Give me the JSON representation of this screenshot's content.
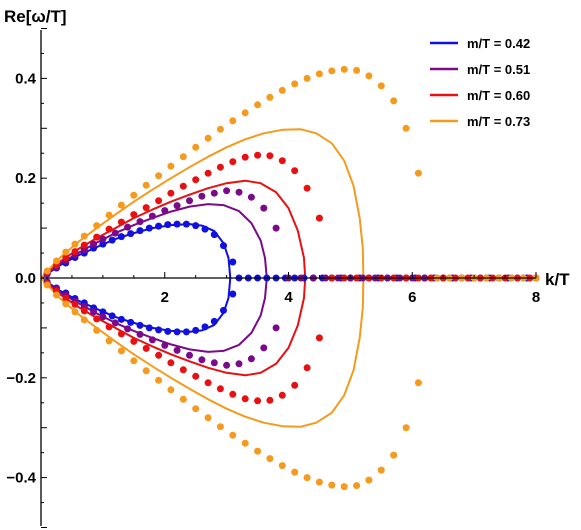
{
  "chart_data": {
    "type": "line",
    "ylabel": "Re[ω/T]",
    "xlabel": "k/T",
    "xlim": [
      0,
      8
    ],
    "ylim": [
      -0.5,
      0.5
    ],
    "x_ticks": [
      2,
      4,
      6,
      8
    ],
    "y_ticks": [
      -0.4,
      -0.2,
      0.0,
      0.2,
      0.4
    ],
    "x_tick_labels": [
      "2",
      "4",
      "6",
      "8"
    ],
    "y_tick_labels": [
      "−0.4",
      "−0.2",
      "0.0",
      "0.2",
      "0.4"
    ],
    "legend_position": "top-right",
    "series": [
      {
        "name": "m/T = 0.42",
        "color": "#1010e0",
        "curve": [
          [
            0,
            0
          ],
          [
            0.3,
            0.025
          ],
          [
            0.6,
            0.045
          ],
          [
            0.9,
            0.062
          ],
          [
            1.2,
            0.078
          ],
          [
            1.5,
            0.09
          ],
          [
            1.8,
            0.1
          ],
          [
            2.1,
            0.106
          ],
          [
            2.4,
            0.108
          ],
          [
            2.6,
            0.105
          ],
          [
            2.8,
            0.094
          ],
          [
            2.95,
            0.07
          ],
          [
            3.03,
            0.04
          ],
          [
            3.06,
            0
          ]
        ],
        "points": [
          [
            0.1,
            0.008
          ],
          [
            0.25,
            0.02
          ],
          [
            0.4,
            0.03
          ],
          [
            0.55,
            0.041
          ],
          [
            0.7,
            0.05
          ],
          [
            0.85,
            0.06
          ],
          [
            1.0,
            0.068
          ],
          [
            1.15,
            0.076
          ],
          [
            1.3,
            0.083
          ],
          [
            1.45,
            0.089
          ],
          [
            1.6,
            0.095
          ],
          [
            1.75,
            0.1
          ],
          [
            1.9,
            0.104
          ],
          [
            2.05,
            0.107
          ],
          [
            2.2,
            0.108
          ],
          [
            2.35,
            0.108
          ],
          [
            2.5,
            0.105
          ],
          [
            2.65,
            0.098
          ],
          [
            2.8,
            0.087
          ],
          [
            2.95,
            0.065
          ],
          [
            3.1,
            0.032
          ],
          [
            3.2,
            0
          ],
          [
            3.35,
            0
          ],
          [
            3.5,
            0
          ],
          [
            3.65,
            0
          ],
          [
            3.8,
            0
          ],
          [
            3.95,
            0
          ],
          [
            4.1,
            0
          ],
          [
            4.25,
            0
          ],
          [
            4.4,
            0
          ],
          [
            4.55,
            0
          ],
          [
            4.7,
            0
          ],
          [
            4.85,
            0
          ],
          [
            5.0,
            0
          ],
          [
            5.15,
            0
          ],
          [
            5.3,
            0
          ],
          [
            5.45,
            0
          ],
          [
            5.6,
            0
          ],
          [
            5.75,
            0
          ],
          [
            5.9,
            0
          ],
          [
            6.05,
            0
          ],
          [
            6.2,
            0
          ],
          [
            6.35,
            0
          ],
          [
            6.5,
            0
          ],
          [
            6.65,
            0
          ],
          [
            6.8,
            0
          ],
          [
            6.95,
            0
          ],
          [
            7.1,
            0
          ],
          [
            7.25,
            0
          ],
          [
            7.4,
            0
          ],
          [
            7.55,
            0
          ],
          [
            7.7,
            0
          ],
          [
            7.85,
            0
          ],
          [
            8.0,
            0
          ]
        ]
      },
      {
        "name": "m/T = 0.51",
        "color": "#7a0a8a",
        "curve": [
          [
            0,
            0
          ],
          [
            0.3,
            0.028
          ],
          [
            0.6,
            0.05
          ],
          [
            0.9,
            0.071
          ],
          [
            1.2,
            0.09
          ],
          [
            1.5,
            0.106
          ],
          [
            1.8,
            0.12
          ],
          [
            2.1,
            0.133
          ],
          [
            2.4,
            0.143
          ],
          [
            2.7,
            0.148
          ],
          [
            2.95,
            0.146
          ],
          [
            3.2,
            0.134
          ],
          [
            3.4,
            0.11
          ],
          [
            3.55,
            0.075
          ],
          [
            3.62,
            0.04
          ],
          [
            3.65,
            0
          ]
        ],
        "points": [
          [
            0.1,
            0.009
          ],
          [
            0.25,
            0.022
          ],
          [
            0.4,
            0.034
          ],
          [
            0.55,
            0.046
          ],
          [
            0.7,
            0.057
          ],
          [
            0.85,
            0.068
          ],
          [
            1.0,
            0.078
          ],
          [
            1.2,
            0.09
          ],
          [
            1.4,
            0.102
          ],
          [
            1.6,
            0.113
          ],
          [
            1.8,
            0.124
          ],
          [
            2.0,
            0.135
          ],
          [
            2.2,
            0.145
          ],
          [
            2.4,
            0.155
          ],
          [
            2.6,
            0.164
          ],
          [
            2.8,
            0.17
          ],
          [
            3.0,
            0.175
          ],
          [
            3.2,
            0.172
          ],
          [
            3.4,
            0.162
          ],
          [
            3.6,
            0.14
          ],
          [
            3.8,
            0.1
          ],
          [
            4.0,
            0
          ],
          [
            4.2,
            0
          ],
          [
            4.4,
            0
          ],
          [
            4.6,
            0
          ],
          [
            4.8,
            0
          ],
          [
            5.0,
            0
          ],
          [
            5.2,
            0
          ],
          [
            5.4,
            0
          ],
          [
            5.6,
            0
          ],
          [
            5.8,
            0
          ],
          [
            6.0,
            0
          ],
          [
            6.2,
            0
          ],
          [
            6.4,
            0
          ],
          [
            6.6,
            0
          ],
          [
            6.8,
            0
          ],
          [
            7.0,
            0
          ],
          [
            7.2,
            0
          ],
          [
            7.4,
            0
          ],
          [
            7.6,
            0
          ],
          [
            7.8,
            0
          ],
          [
            8.0,
            0
          ]
        ]
      },
      {
        "name": "m/T = 0.60",
        "color": "#e81010",
        "curve": [
          [
            0,
            0
          ],
          [
            0.3,
            0.032
          ],
          [
            0.6,
            0.058
          ],
          [
            0.9,
            0.08
          ],
          [
            1.2,
            0.1
          ],
          [
            1.5,
            0.12
          ],
          [
            1.8,
            0.137
          ],
          [
            2.1,
            0.153
          ],
          [
            2.4,
            0.167
          ],
          [
            2.7,
            0.18
          ],
          [
            3.0,
            0.19
          ],
          [
            3.3,
            0.195
          ],
          [
            3.55,
            0.19
          ],
          [
            3.8,
            0.172
          ],
          [
            4.0,
            0.14
          ],
          [
            4.15,
            0.095
          ],
          [
            4.25,
            0.04
          ],
          [
            4.27,
            0
          ]
        ],
        "points": [
          [
            0.1,
            0.011
          ],
          [
            0.25,
            0.026
          ],
          [
            0.4,
            0.04
          ],
          [
            0.55,
            0.053
          ],
          [
            0.7,
            0.066
          ],
          [
            0.9,
            0.082
          ],
          [
            1.1,
            0.098
          ],
          [
            1.3,
            0.112
          ],
          [
            1.5,
            0.127
          ],
          [
            1.7,
            0.141
          ],
          [
            1.9,
            0.155
          ],
          [
            2.1,
            0.17
          ],
          [
            2.3,
            0.184
          ],
          [
            2.5,
            0.197
          ],
          [
            2.7,
            0.21
          ],
          [
            2.9,
            0.222
          ],
          [
            3.1,
            0.233
          ],
          [
            3.3,
            0.242
          ],
          [
            3.5,
            0.246
          ],
          [
            3.7,
            0.245
          ],
          [
            3.9,
            0.235
          ],
          [
            4.1,
            0.215
          ],
          [
            4.3,
            0.18
          ],
          [
            4.5,
            0.12
          ],
          [
            4.7,
            0
          ],
          [
            4.9,
            0
          ],
          [
            5.1,
            0
          ],
          [
            5.3,
            0
          ],
          [
            5.5,
            0
          ],
          [
            5.7,
            0
          ],
          [
            5.9,
            0
          ],
          [
            6.1,
            0
          ],
          [
            6.3,
            0
          ],
          [
            6.5,
            0
          ],
          [
            6.7,
            0
          ],
          [
            6.9,
            0
          ],
          [
            7.1,
            0
          ],
          [
            7.3,
            0
          ],
          [
            7.5,
            0
          ],
          [
            7.7,
            0
          ],
          [
            7.9,
            0
          ]
        ]
      },
      {
        "name": "m/T = 0.73",
        "color": "#f59a1c",
        "curve": [
          [
            0,
            0
          ],
          [
            0.3,
            0.04
          ],
          [
            0.6,
            0.072
          ],
          [
            0.9,
            0.1
          ],
          [
            1.2,
            0.127
          ],
          [
            1.5,
            0.153
          ],
          [
            1.8,
            0.177
          ],
          [
            2.1,
            0.2
          ],
          [
            2.4,
            0.222
          ],
          [
            2.7,
            0.243
          ],
          [
            3.0,
            0.262
          ],
          [
            3.3,
            0.278
          ],
          [
            3.6,
            0.29
          ],
          [
            3.9,
            0.297
          ],
          [
            4.2,
            0.298
          ],
          [
            4.45,
            0.29
          ],
          [
            4.7,
            0.27
          ],
          [
            4.9,
            0.235
          ],
          [
            5.05,
            0.185
          ],
          [
            5.15,
            0.12
          ],
          [
            5.2,
            0.06
          ],
          [
            5.21,
            0
          ]
        ],
        "points": [
          [
            0.1,
            0.014
          ],
          [
            0.25,
            0.034
          ],
          [
            0.4,
            0.052
          ],
          [
            0.55,
            0.068
          ],
          [
            0.7,
            0.084
          ],
          [
            0.9,
            0.105
          ],
          [
            1.1,
            0.126
          ],
          [
            1.3,
            0.146
          ],
          [
            1.5,
            0.166
          ],
          [
            1.7,
            0.186
          ],
          [
            1.9,
            0.205
          ],
          [
            2.1,
            0.224
          ],
          [
            2.3,
            0.243
          ],
          [
            2.5,
            0.262
          ],
          [
            2.7,
            0.28
          ],
          [
            2.9,
            0.298
          ],
          [
            3.1,
            0.315
          ],
          [
            3.3,
            0.331
          ],
          [
            3.5,
            0.347
          ],
          [
            3.7,
            0.362
          ],
          [
            3.9,
            0.376
          ],
          [
            4.1,
            0.389
          ],
          [
            4.3,
            0.4
          ],
          [
            4.5,
            0.409
          ],
          [
            4.7,
            0.415
          ],
          [
            4.9,
            0.418
          ],
          [
            5.1,
            0.416
          ],
          [
            5.3,
            0.405
          ],
          [
            5.5,
            0.385
          ],
          [
            5.7,
            0.355
          ],
          [
            5.9,
            0.3
          ],
          [
            6.1,
            0.21
          ],
          [
            6.4,
            0
          ],
          [
            6.6,
            0
          ],
          [
            6.8,
            0
          ],
          [
            7.0,
            0
          ],
          [
            7.2,
            0
          ],
          [
            7.4,
            0
          ],
          [
            7.6,
            0
          ],
          [
            7.8,
            0
          ],
          [
            8.0,
            0
          ]
        ]
      }
    ]
  }
}
